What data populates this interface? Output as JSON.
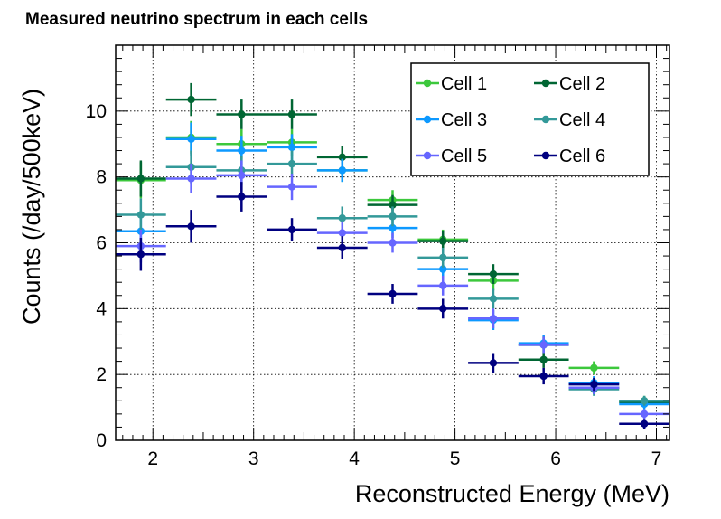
{
  "chart_data": {
    "type": "scatter",
    "title": "Measured neutrino spectrum in each cells",
    "xlabel": "Reconstructed Energy (MeV)",
    "ylabel": "Counts (/day/500keV)",
    "xlim": [
      1.63,
      7.13
    ],
    "ylim": [
      0,
      12
    ],
    "xticks": [
      2,
      3,
      4,
      5,
      6,
      7
    ],
    "xtick_labels": [
      "2",
      "3",
      "4",
      "5",
      "6",
      "7"
    ],
    "yticks": [
      0,
      2,
      4,
      6,
      8,
      10
    ],
    "ytick_labels": [
      "0",
      "2",
      "4",
      "6",
      "8",
      "10"
    ],
    "grid": true,
    "legend_position": "top-right",
    "bin_half_width": 0.25,
    "series": [
      {
        "name": "Cell 1",
        "color": "#3cc83c",
        "x": [
          1.88,
          2.38,
          2.88,
          3.38,
          3.88,
          4.38,
          4.88,
          5.38,
          5.88,
          6.38,
          6.88
        ],
        "y": [
          7.9,
          9.2,
          9.0,
          9.05,
          8.2,
          7.3,
          6.1,
          4.85,
          2.9,
          2.2,
          1.2
        ],
        "err": [
          0.55,
          0.5,
          0.45,
          0.4,
          0.35,
          0.3,
          0.3,
          0.3,
          0.25,
          0.2,
          0.15
        ]
      },
      {
        "name": "Cell 2",
        "color": "#006633",
        "x": [
          1.88,
          2.38,
          2.88,
          3.38,
          3.88,
          4.38,
          4.88,
          5.38,
          5.88,
          6.38,
          6.88
        ],
        "y": [
          7.95,
          10.35,
          9.9,
          9.9,
          8.6,
          7.15,
          6.05,
          5.05,
          2.45,
          1.6,
          1.15
        ],
        "err": [
          0.55,
          0.5,
          0.45,
          0.45,
          0.35,
          0.3,
          0.3,
          0.3,
          0.25,
          0.2,
          0.15
        ]
      },
      {
        "name": "Cell 3",
        "color": "#0d99ff",
        "x": [
          1.88,
          2.38,
          2.88,
          3.38,
          3.88,
          4.38,
          4.88,
          5.38,
          5.88,
          6.38,
          6.88
        ],
        "y": [
          6.35,
          9.15,
          8.8,
          8.9,
          8.2,
          6.45,
          5.2,
          3.65,
          2.95,
          1.75,
          1.1
        ],
        "err": [
          0.5,
          0.5,
          0.45,
          0.4,
          0.35,
          0.3,
          0.3,
          0.3,
          0.25,
          0.2,
          0.15
        ]
      },
      {
        "name": "Cell 4",
        "color": "#339999",
        "x": [
          1.88,
          2.38,
          2.88,
          3.38,
          3.88,
          4.38,
          4.88,
          5.38,
          5.88,
          6.38,
          6.88
        ],
        "y": [
          6.85,
          8.3,
          8.2,
          8.4,
          6.75,
          6.8,
          5.55,
          4.3,
          2.9,
          1.55,
          1.2
        ],
        "err": [
          0.5,
          0.5,
          0.45,
          0.4,
          0.35,
          0.3,
          0.3,
          0.3,
          0.25,
          0.2,
          0.15
        ]
      },
      {
        "name": "Cell 5",
        "color": "#6666ff",
        "x": [
          1.88,
          2.38,
          2.88,
          3.38,
          3.88,
          4.38,
          4.88,
          5.38,
          5.88,
          6.38,
          6.88
        ],
        "y": [
          5.9,
          7.95,
          8.05,
          7.7,
          6.3,
          6.0,
          4.7,
          3.7,
          2.9,
          1.6,
          0.8
        ],
        "err": [
          0.5,
          0.45,
          0.45,
          0.4,
          0.35,
          0.3,
          0.3,
          0.3,
          0.25,
          0.2,
          0.15
        ]
      },
      {
        "name": "Cell 6",
        "color": "#000080",
        "x": [
          1.88,
          2.38,
          2.88,
          3.38,
          3.88,
          4.38,
          4.88,
          5.38,
          5.88,
          6.38,
          6.88
        ],
        "y": [
          5.65,
          6.5,
          7.4,
          6.4,
          5.85,
          4.45,
          4.0,
          2.35,
          1.95,
          1.7,
          0.5
        ],
        "err": [
          0.5,
          0.5,
          0.45,
          0.35,
          0.35,
          0.3,
          0.3,
          0.3,
          0.25,
          0.2,
          0.15
        ]
      }
    ]
  }
}
